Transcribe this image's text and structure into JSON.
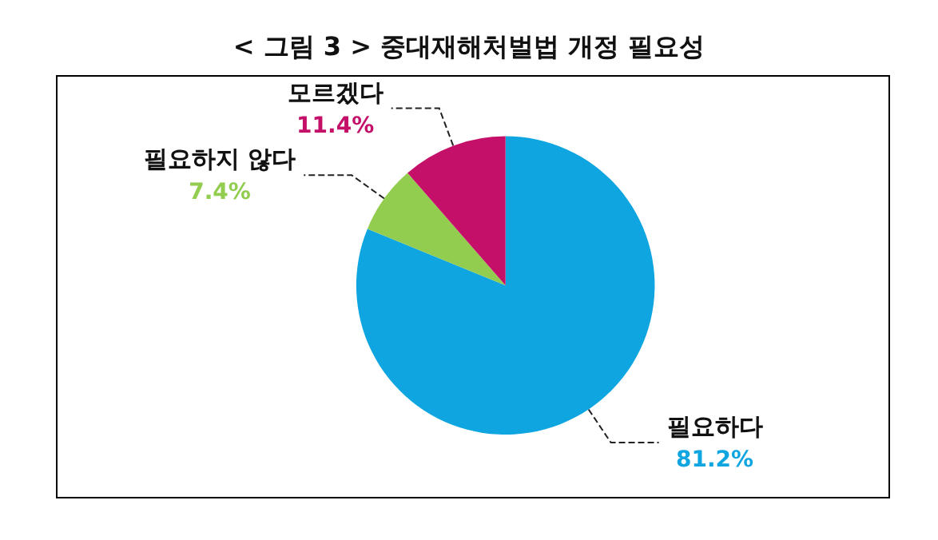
{
  "chart_data": {
    "type": "pie",
    "title": "< 그림 3 > 중대재해처벌법 개정 필요성",
    "categories": [
      "필요하다",
      "필요하지 않다",
      "모르겠다"
    ],
    "values": [
      81.2,
      7.4,
      11.4
    ],
    "value_labels": [
      "81.2%",
      "7.4%",
      "11.4%"
    ],
    "colors": [
      "#0ea5e0",
      "#92cd50",
      "#c5106a"
    ]
  }
}
